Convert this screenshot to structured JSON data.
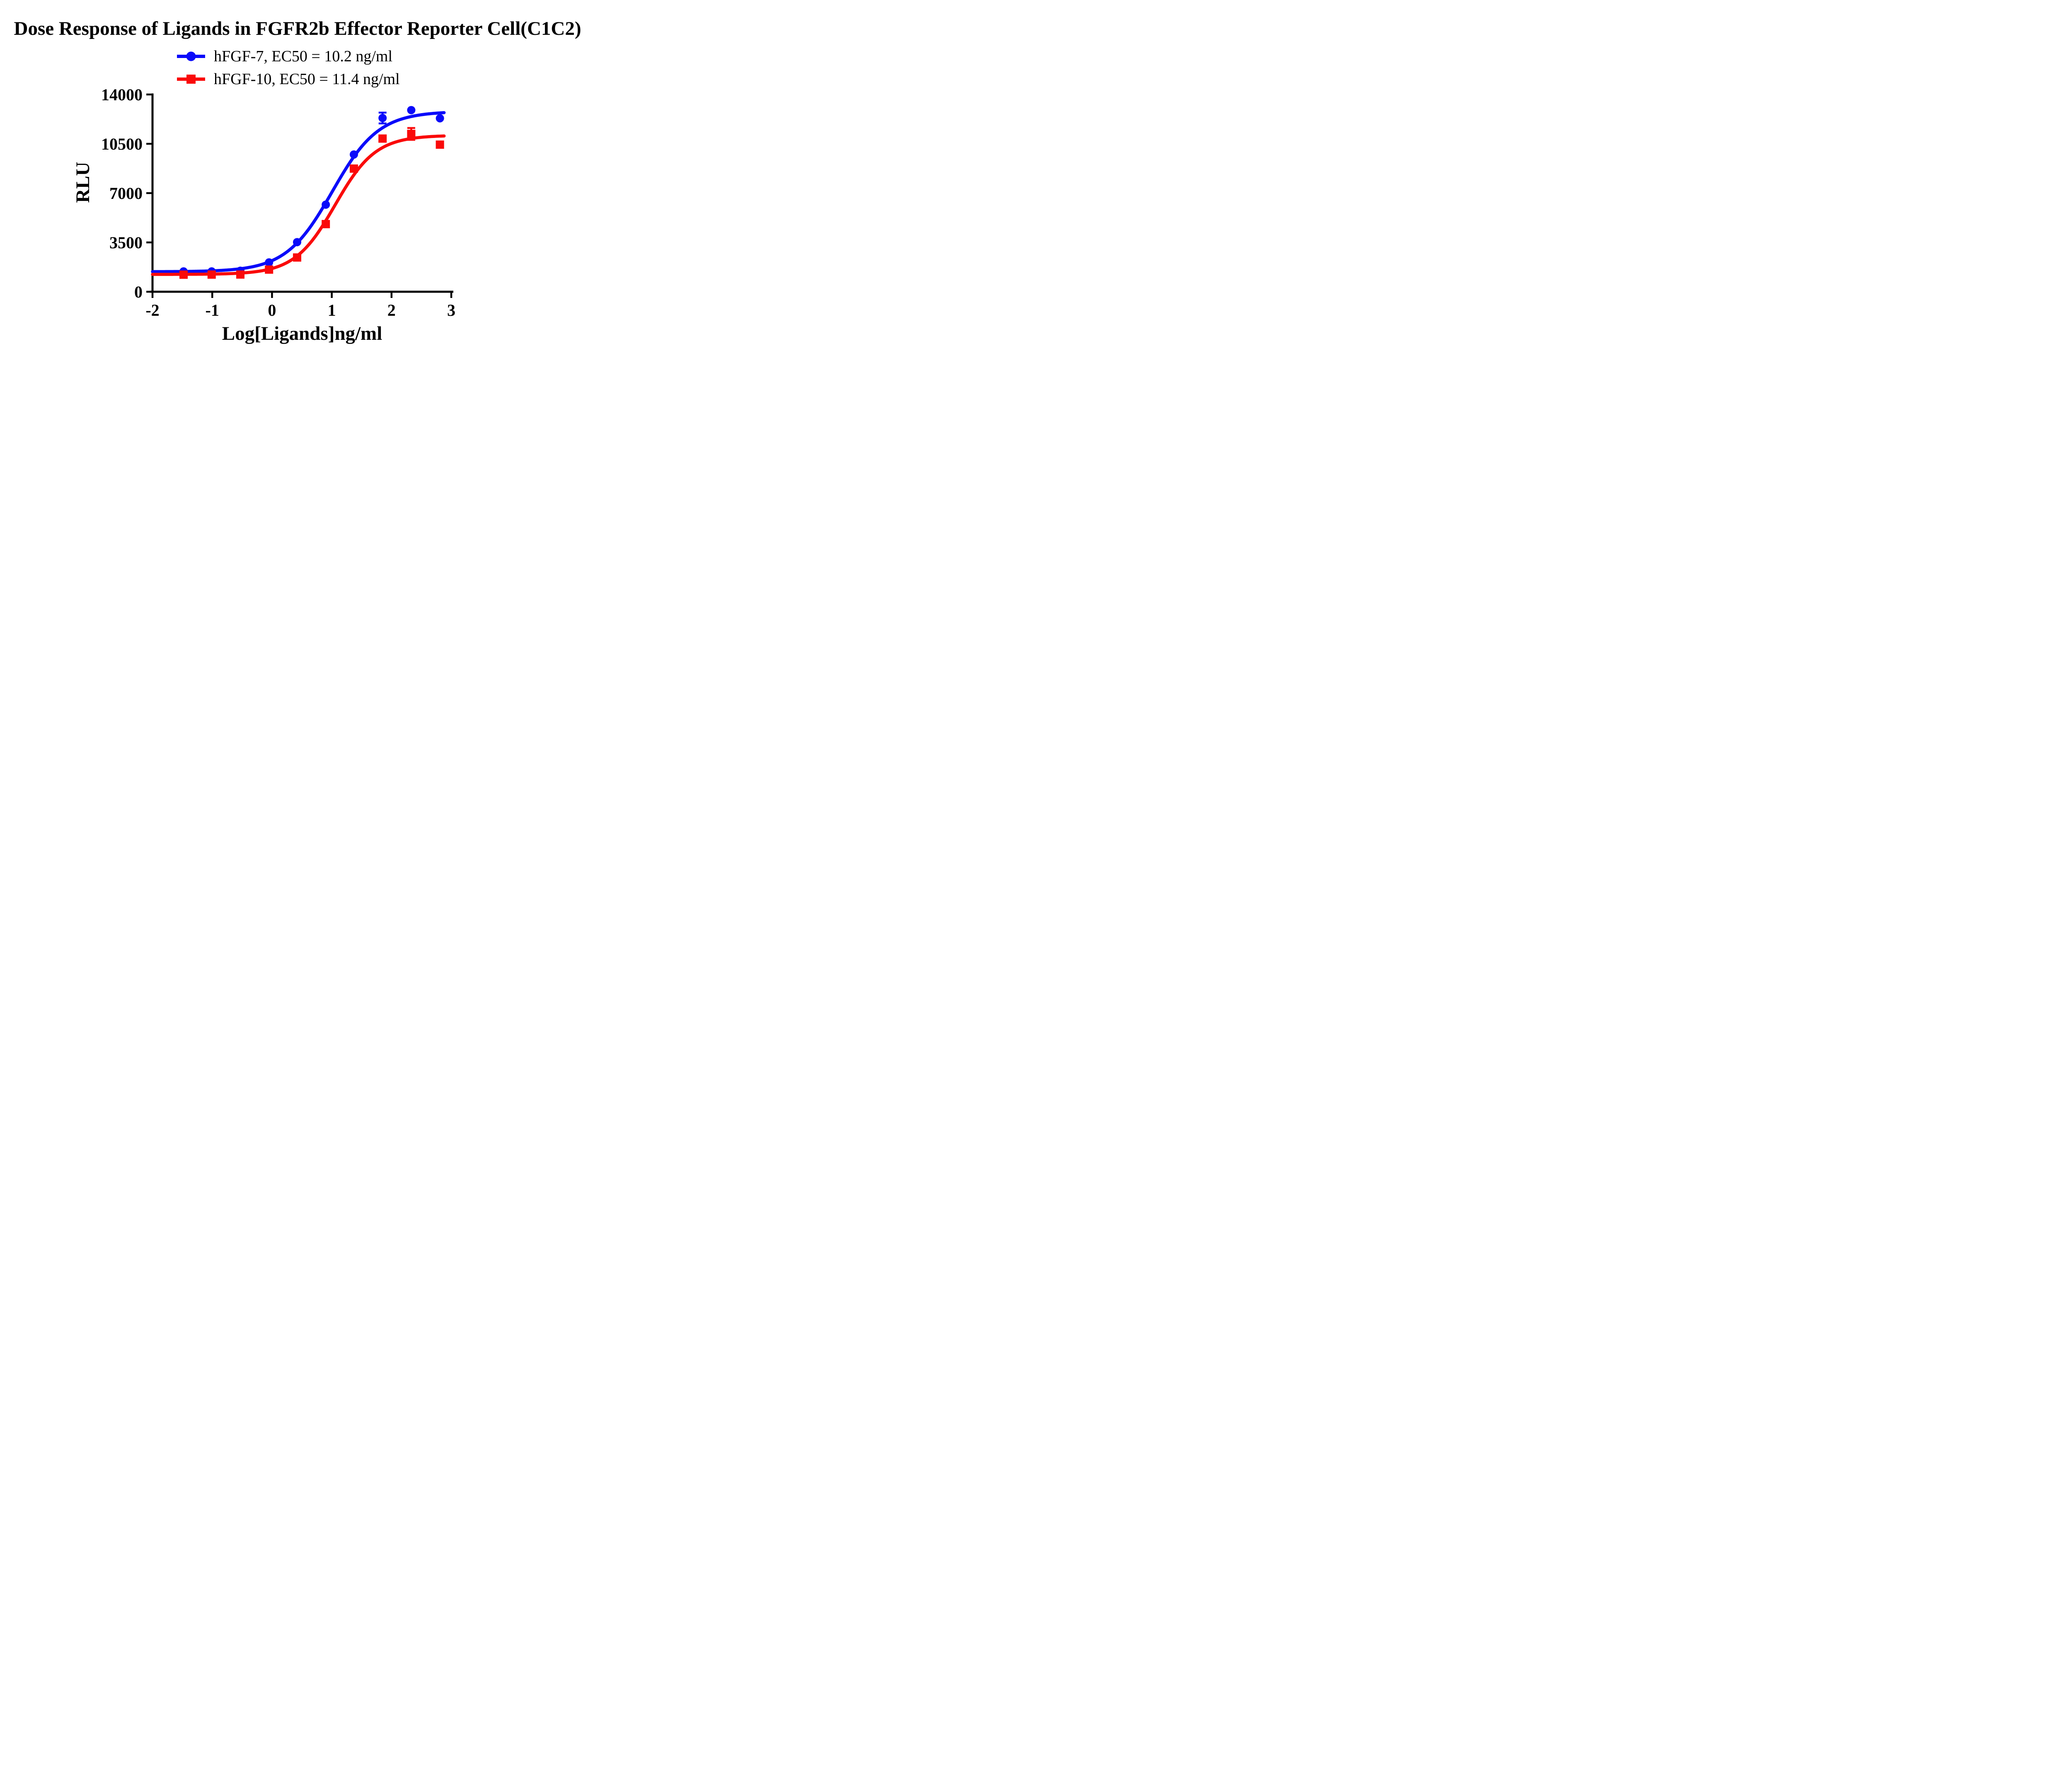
{
  "chart_data": {
    "type": "scatter",
    "subtype": "dose-response 4PL fitted curves with data points and error bars",
    "title": "Dose Response of Ligands in FGFR2b Effector Reporter Cell(C1C2)",
    "xlabel": "Log[Ligands]ng/ml",
    "ylabel": "RLU",
    "xlim": [
      -2,
      3
    ],
    "ylim": [
      0,
      14000
    ],
    "x_ticks": [
      -2,
      -1,
      0,
      1,
      2,
      3
    ],
    "x_tick_labels": [
      "-2",
      "-1",
      "0",
      "1",
      "2",
      "3"
    ],
    "y_ticks": [
      0,
      3500,
      7000,
      10500,
      14000
    ],
    "y_tick_labels": [
      "0",
      "3500",
      "7000",
      "10500",
      "14000"
    ],
    "grid": false,
    "legend_position": "top-center",
    "axis_color": "#000000",
    "x": [
      -1.48,
      -1.01,
      -0.53,
      -0.05,
      0.42,
      0.9,
      1.37,
      1.85,
      2.33,
      2.81
    ],
    "series": [
      {
        "name": "hFGF-7, EC50 = 10.2 ng/ml",
        "ligand": "hFGF-7",
        "ec50_ng_ml": 10.2,
        "color": "#0a0afa",
        "marker": "circle",
        "y": [
          1440,
          1440,
          1490,
          2080,
          3520,
          6180,
          9740,
          12330,
          12890,
          12310
        ],
        "y_err": [
          0,
          0,
          0,
          0,
          0,
          0,
          0,
          385,
          0,
          0
        ],
        "fit_4pl": {
          "bottom": 1420,
          "top": 12800,
          "logEC50": 1.0086,
          "hill": 1.12,
          "x_start": -2,
          "x_end": 2.88
        }
      },
      {
        "name": "hFGF-10, EC50 = 11.4 ng/ml",
        "ligand": "hFGF-10",
        "ec50_ng_ml": 11.4,
        "color": "#fa0a0a",
        "marker": "square",
        "y": [
          1210,
          1215,
          1220,
          1570,
          2430,
          4800,
          8740,
          10870,
          11200,
          10440
        ],
        "y_err": [
          0,
          0,
          0,
          0,
          0,
          0,
          0,
          0,
          420,
          0
        ],
        "fit_4pl": {
          "bottom": 1230,
          "top": 11100,
          "logEC50": 1.057,
          "hill": 1.28,
          "x_start": -2,
          "x_end": 2.88
        }
      }
    ]
  }
}
